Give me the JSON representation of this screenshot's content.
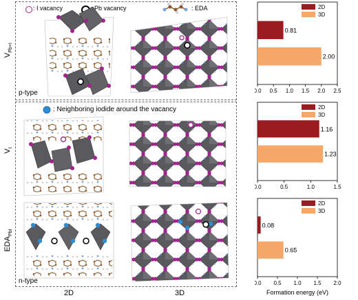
{
  "legend": {
    "i_vacancy": ": I vacancy",
    "pb_vacancy": ": Pb vacancy",
    "eda": ": EDA",
    "neighboring_iodide": ": Neighboring iodide around the vacancy"
  },
  "rows": {
    "row1_main": "V",
    "row1_sub": "Pb+I",
    "row2_main": "V",
    "row2_sub": "I",
    "row3_main": "EDA",
    "row3_sub": "PbI"
  },
  "annotations": {
    "p_type": "p-type",
    "n_type": "n-type"
  },
  "columns": {
    "col_2d": "2D",
    "col_3d": "3D"
  },
  "colors": {
    "bar_2d": "#9b1c1f",
    "bar_3d": "#f5a86a",
    "octahedron": "#5a5a5e",
    "iodide": "#a3238c",
    "neighbor": "#2a8fd6",
    "organic": "#8a5a2b"
  },
  "chart_data": [
    {
      "type": "bar",
      "orientation": "horizontal",
      "series": [
        {
          "name": "2D",
          "values": [
            0.81
          ]
        },
        {
          "name": "3D",
          "values": [
            2.0
          ]
        }
      ],
      "value_labels": [
        "0.81",
        "2.00"
      ],
      "xlim": [
        0,
        2.5
      ],
      "xticks": [
        "0.0",
        "0.5",
        "1.0",
        "1.5",
        "2.0",
        "2.5"
      ],
      "legend": "top-right"
    },
    {
      "type": "bar",
      "orientation": "horizontal",
      "series": [
        {
          "name": "2D",
          "values": [
            1.16
          ]
        },
        {
          "name": "3D",
          "values": [
            1.23
          ]
        }
      ],
      "value_labels": [
        "1.16",
        "1.23"
      ],
      "xlim": [
        0,
        1.5
      ],
      "xticks": [
        "0.0",
        "0.5",
        "1.0",
        "1.5"
      ],
      "legend": "top-right"
    },
    {
      "type": "bar",
      "orientation": "horizontal",
      "series": [
        {
          "name": "2D",
          "values": [
            0.08
          ]
        },
        {
          "name": "3D",
          "values": [
            0.65
          ]
        }
      ],
      "value_labels": [
        "0.08",
        "0.65"
      ],
      "xlim": [
        0,
        2.0
      ],
      "xticks": [
        "0.0",
        "0.5",
        "1.0",
        "1.5",
        "2.0"
      ],
      "legend": "top-right",
      "xlabel": "Formation energy (eV)"
    }
  ]
}
